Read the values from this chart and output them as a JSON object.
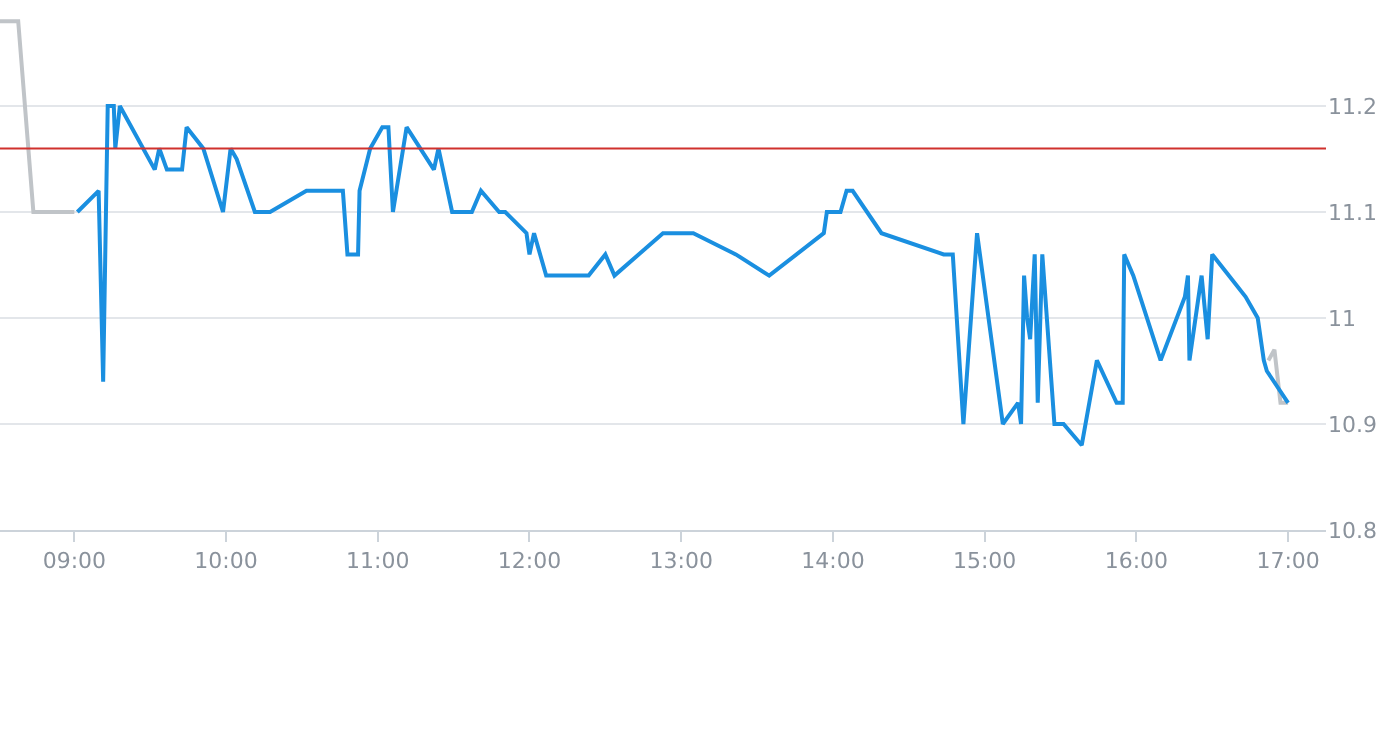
{
  "chart_data": {
    "type": "line",
    "xlim": [
      8.51,
      17.25
    ],
    "xticks": [
      {
        "value": 9,
        "label": "09:00"
      },
      {
        "value": 10,
        "label": "10:00"
      },
      {
        "value": 11,
        "label": "11:00"
      },
      {
        "value": 12,
        "label": "12:00"
      },
      {
        "value": 13,
        "label": "13:00"
      },
      {
        "value": 14,
        "label": "14:00"
      },
      {
        "value": 15,
        "label": "15:00"
      },
      {
        "value": 16,
        "label": "16:00"
      },
      {
        "value": 17,
        "label": "17:00"
      }
    ],
    "ylim": [
      10.8,
      11.3
    ],
    "yticks": [
      10.8,
      10.9,
      11,
      11.1,
      11.2
    ],
    "grid": "y",
    "marker": "none",
    "line_style": "solid",
    "ref_lines": [
      {
        "axis": "y",
        "value": 11.16,
        "label": null,
        "color": "#d0312d"
      }
    ],
    "series": [
      {
        "color": "#c0c4c8",
        "x": [
          8.51,
          8.63,
          8.73,
          9.0
        ],
        "values": [
          11.28,
          11.28,
          11.1,
          11.1
        ]
      },
      {
        "color": "#c0c4c8",
        "x": [
          16.87,
          16.91,
          16.95,
          17.0
        ],
        "values": [
          10.96,
          10.97,
          10.92,
          10.92
        ]
      },
      {
        "color": "#1a8fe0",
        "x": [
          9.02,
          9.16,
          9.19,
          9.22,
          9.26,
          9.27,
          9.3,
          9.53,
          9.56,
          9.61,
          9.71,
          9.74,
          9.85,
          9.98,
          10.03,
          10.07,
          10.19,
          10.29,
          10.53,
          10.77,
          10.8,
          10.87,
          10.88,
          10.95,
          11.03,
          11.07,
          11.1,
          11.19,
          11.37,
          11.4,
          11.49,
          11.62,
          11.68,
          11.8,
          11.84,
          11.98,
          12.0,
          12.03,
          12.11,
          12.39,
          12.5,
          12.56,
          12.88,
          13.08,
          13.36,
          13.58,
          13.94,
          13.96,
          14.05,
          14.09,
          14.13,
          14.32,
          14.73,
          14.79,
          14.86,
          14.95,
          15.12,
          15.22,
          15.24,
          15.26,
          15.28,
          15.3,
          15.33,
          15.35,
          15.38,
          15.46,
          15.52,
          15.64,
          15.74,
          15.87,
          15.91,
          15.92,
          15.98,
          16.16,
          16.32,
          16.34,
          16.35,
          16.43,
          16.47,
          16.5,
          16.72,
          16.8,
          16.84,
          16.86,
          17.0
        ],
        "values": [
          11.1,
          11.12,
          10.94,
          11.2,
          11.2,
          11.16,
          11.2,
          11.14,
          11.16,
          11.14,
          11.14,
          11.18,
          11.16,
          11.1,
          11.16,
          11.15,
          11.1,
          11.1,
          11.12,
          11.12,
          11.06,
          11.06,
          11.12,
          11.16,
          11.18,
          11.18,
          11.1,
          11.18,
          11.14,
          11.16,
          11.1,
          11.1,
          11.12,
          11.1,
          11.1,
          11.08,
          11.06,
          11.08,
          11.04,
          11.04,
          11.06,
          11.04,
          11.08,
          11.08,
          11.06,
          11.04,
          11.08,
          11.1,
          11.1,
          11.12,
          11.12,
          11.08,
          11.06,
          11.06,
          10.9,
          11.08,
          10.9,
          10.92,
          10.9,
          11.04,
          11.0,
          10.98,
          11.06,
          10.92,
          11.06,
          10.9,
          10.9,
          10.88,
          10.96,
          10.92,
          10.92,
          11.06,
          11.04,
          10.96,
          11.02,
          11.04,
          10.96,
          11.04,
          10.98,
          11.06,
          11.02,
          11.0,
          10.96,
          10.95,
          10.92
        ]
      }
    ]
  }
}
